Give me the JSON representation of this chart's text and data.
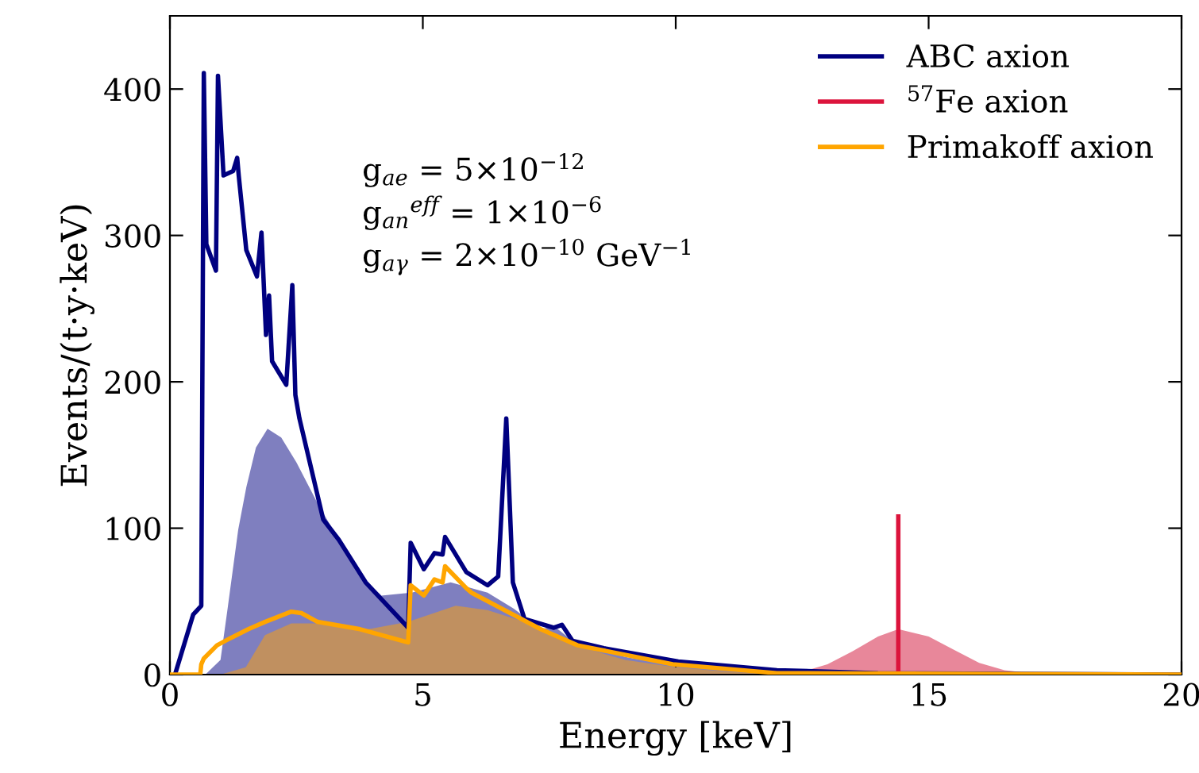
{
  "chart_data": {
    "type": "line",
    "xlabel": "Energy [keV]",
    "ylabel": "Events/(t·y·keV)",
    "xlim": [
      0,
      20
    ],
    "ylim": [
      0,
      450
    ],
    "xticks": [
      0,
      5,
      10,
      15,
      20
    ],
    "yticks": [
      0,
      100,
      200,
      300,
      400
    ],
    "grid": false,
    "legend": "top right",
    "annotations": [
      "g$_{ae}$ = 5×10$^{−12}$",
      "g$_{an}$$^{eff}$ = 1×10$^{−6}$",
      "g$_{aγ}$ = 2×10$^{−10}$ GeV$^{−1}$"
    ],
    "series": [
      {
        "type": "area",
        "color": "#7f7fbf",
        "x": [
          0.7,
          1.0,
          1.14,
          1.35,
          1.51,
          1.7,
          1.93,
          2.2,
          2.5,
          2.92,
          3.34,
          3.7,
          4.18,
          4.78,
          5.55,
          6.28,
          6.8,
          7.33,
          7.6,
          8.0,
          9.0,
          10.0,
          11.0,
          12.0,
          13.0
        ],
        "values": [
          0,
          10,
          45,
          99,
          128,
          155,
          168,
          162,
          145,
          117,
          92,
          70,
          54,
          56,
          63,
          56,
          45,
          31,
          33,
          22,
          12,
          6,
          3,
          1,
          0
        ]
      },
      {
        "type": "area",
        "color": "#c09060",
        "x": [
          1.0,
          1.5,
          1.88,
          2.4,
          2.92,
          3.76,
          4.71,
          5.65,
          6.28,
          7.0,
          7.5,
          8.0,
          9.0,
          10.0,
          11.0,
          12.0
        ],
        "values": [
          0,
          5,
          27,
          35,
          35,
          30,
          36,
          47,
          44,
          36,
          30,
          20,
          10,
          5,
          2,
          0
        ]
      },
      {
        "type": "area",
        "color": "#e8879a",
        "x": [
          12.0,
          12.5,
          13.0,
          13.5,
          14.0,
          14.4,
          15.0,
          15.5,
          16.0,
          16.5,
          17.0,
          17.5
        ],
        "values": [
          0,
          2,
          7,
          16,
          26,
          31,
          26,
          17,
          8,
          3,
          1,
          0
        ]
      },
      {
        "name": "ABC axion",
        "color": "#000080",
        "x": [
          0.1,
          0.46,
          0.62,
          0.67,
          0.72,
          0.91,
          0.95,
          1.06,
          1.25,
          1.33,
          1.36,
          1.51,
          1.72,
          1.81,
          1.9,
          1.96,
          2.02,
          2.3,
          2.42,
          2.48,
          2.56,
          3.03,
          3.34,
          3.87,
          4.71,
          4.76,
          5.02,
          5.23,
          5.39,
          5.44,
          5.86,
          6.28,
          6.49,
          6.65,
          6.78,
          7.01,
          7.59,
          7.75,
          7.96,
          8.58,
          10.05,
          12.0,
          14.0,
          20.0
        ],
        "values": [
          0,
          41,
          47,
          411,
          294,
          276,
          409,
          341,
          344,
          353,
          341,
          290,
          272,
          302,
          232,
          259,
          214,
          198,
          266,
          191,
          175,
          106,
          92,
          63,
          32,
          90,
          72,
          83,
          82,
          94,
          70,
          61,
          67,
          175,
          63,
          38,
          32,
          34,
          23,
          18,
          9,
          3,
          1,
          0
        ]
      },
      {
        "name": "$^{57}$Fe axion",
        "color": "#dc143c",
        "x": [
          14.4,
          14.4
        ],
        "values": [
          0,
          108
        ]
      },
      {
        "name": "Primakoff axion",
        "color": "#ffa500",
        "x": [
          0.0,
          0.6,
          0.62,
          0.67,
          0.93,
          1.2,
          1.55,
          1.88,
          2.4,
          2.6,
          2.92,
          3.76,
          4.71,
          4.76,
          5.02,
          5.23,
          5.39,
          5.44,
          5.86,
          5.96,
          7.33,
          8.06,
          9.94,
          12.0,
          20.0
        ],
        "values": [
          0,
          0,
          7,
          11,
          20,
          25,
          31,
          36,
          43,
          42,
          36,
          31,
          22,
          61,
          54,
          65,
          63,
          74,
          59,
          56,
          31,
          20,
          7,
          1,
          0
        ]
      }
    ]
  }
}
